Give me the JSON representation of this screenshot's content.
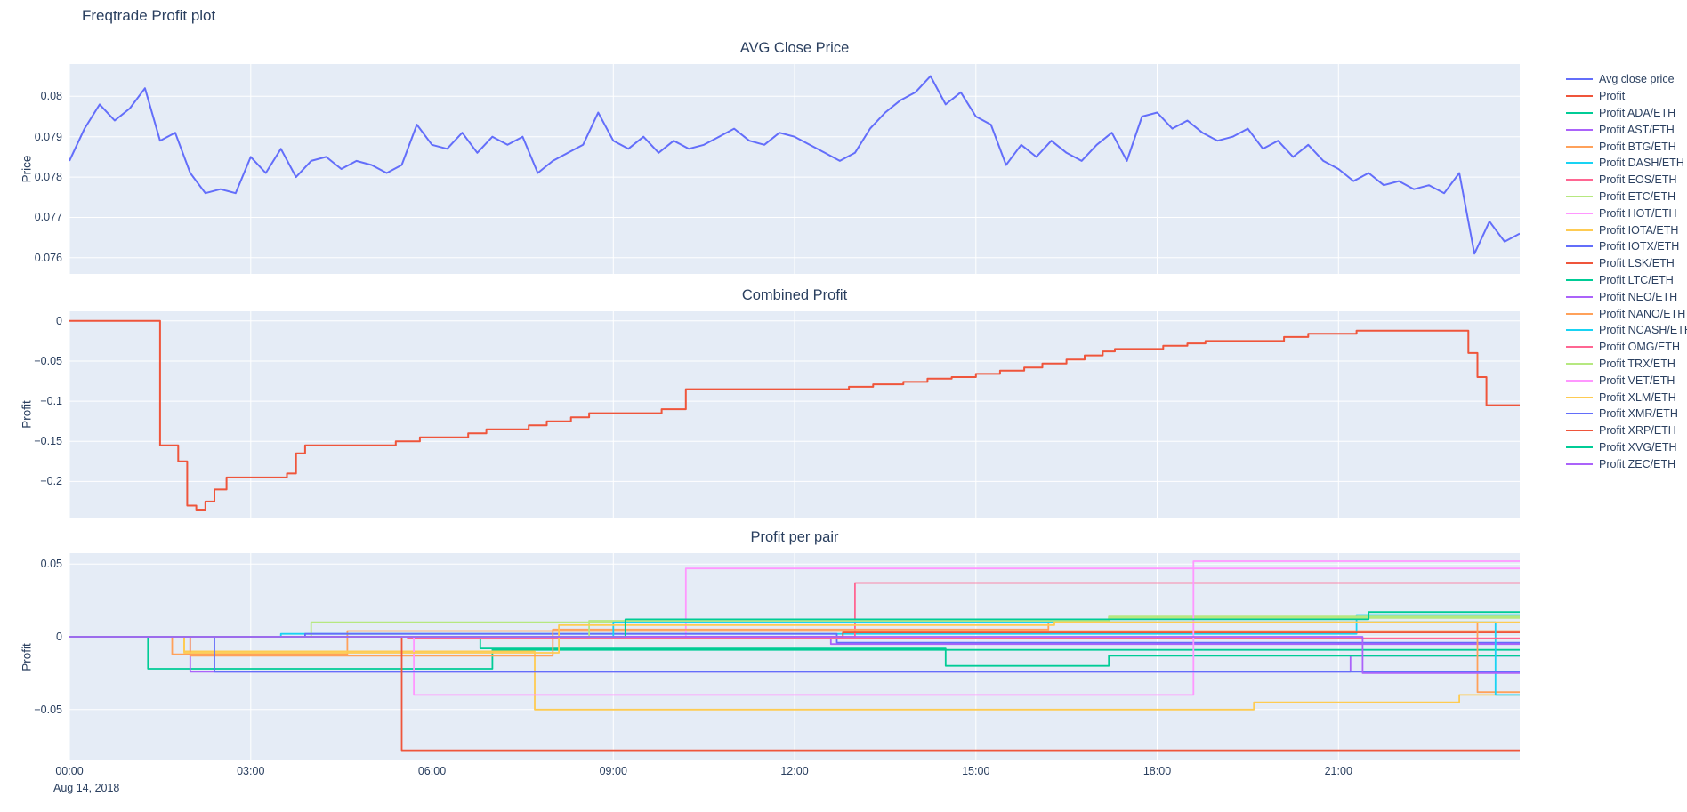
{
  "page": {
    "title": "Freqtrade Profit plot"
  },
  "colors": {
    "text": "#2a3f5f",
    "plot_bg": "#E5ECF6",
    "grid": "#ffffff"
  },
  "xaxis": {
    "range": [
      0,
      24
    ],
    "ticks": [
      {
        "t": 0,
        "label": "00:00"
      },
      {
        "t": 3,
        "label": "03:00"
      },
      {
        "t": 6,
        "label": "06:00"
      },
      {
        "t": 9,
        "label": "09:00"
      },
      {
        "t": 12,
        "label": "12:00"
      },
      {
        "t": 15,
        "label": "15:00"
      },
      {
        "t": 18,
        "label": "18:00"
      },
      {
        "t": 21,
        "label": "21:00"
      }
    ],
    "date_label": "Aug 14, 2018"
  },
  "legend": {
    "items": [
      {
        "label": "Avg close price",
        "color": "#636EFA"
      },
      {
        "label": "Profit",
        "color": "#EF553B"
      },
      {
        "label": "Profit ADA/ETH",
        "color": "#00CC96"
      },
      {
        "label": "Profit AST/ETH",
        "color": "#AB63FA"
      },
      {
        "label": "Profit BTG/ETH",
        "color": "#FFA15A"
      },
      {
        "label": "Profit DASH/ETH",
        "color": "#19D3F3"
      },
      {
        "label": "Profit EOS/ETH",
        "color": "#FF6692"
      },
      {
        "label": "Profit ETC/ETH",
        "color": "#B6E880"
      },
      {
        "label": "Profit HOT/ETH",
        "color": "#FF97FF"
      },
      {
        "label": "Profit IOTA/ETH",
        "color": "#FECB52"
      },
      {
        "label": "Profit IOTX/ETH",
        "color": "#636EFA"
      },
      {
        "label": "Profit LSK/ETH",
        "color": "#EF553B"
      },
      {
        "label": "Profit LTC/ETH",
        "color": "#00CC96"
      },
      {
        "label": "Profit NEO/ETH",
        "color": "#AB63FA"
      },
      {
        "label": "Profit NANO/ETH",
        "color": "#FFA15A"
      },
      {
        "label": "Profit NCASH/ETH",
        "color": "#19D3F3"
      },
      {
        "label": "Profit OMG/ETH",
        "color": "#FF6692"
      },
      {
        "label": "Profit TRX/ETH",
        "color": "#B6E880"
      },
      {
        "label": "Profit VET/ETH",
        "color": "#FF97FF"
      },
      {
        "label": "Profit XLM/ETH",
        "color": "#FECB52"
      },
      {
        "label": "Profit XMR/ETH",
        "color": "#636EFA"
      },
      {
        "label": "Profit XRP/ETH",
        "color": "#EF553B"
      },
      {
        "label": "Profit XVG/ETH",
        "color": "#00CC96"
      },
      {
        "label": "Profit ZEC/ETH",
        "color": "#AB63FA"
      }
    ]
  },
  "chart_data": [
    {
      "type": "line",
      "title": "AVG Close Price",
      "ylabel": "Price",
      "ylim": [
        0.0756,
        0.0808
      ],
      "yticks": [
        {
          "v": 0.076,
          "label": "0.076"
        },
        {
          "v": 0.077,
          "label": "0.077"
        },
        {
          "v": 0.078,
          "label": "0.078"
        },
        {
          "v": 0.079,
          "label": "0.079"
        },
        {
          "v": 0.08,
          "label": "0.08"
        }
      ],
      "series": [
        {
          "name": "Avg close price",
          "color": "#636EFA",
          "x_start": 0,
          "x_step": 0.25,
          "y": [
            0.0784,
            0.0792,
            0.0798,
            0.0794,
            0.0797,
            0.0802,
            0.0789,
            0.0791,
            0.0781,
            0.0776,
            0.0777,
            0.0776,
            0.0785,
            0.0781,
            0.0787,
            0.078,
            0.0784,
            0.0785,
            0.0782,
            0.0784,
            0.0783,
            0.0781,
            0.0783,
            0.0793,
            0.0788,
            0.0787,
            0.0791,
            0.0786,
            0.079,
            0.0788,
            0.079,
            0.0781,
            0.0784,
            0.0786,
            0.0788,
            0.0796,
            0.0789,
            0.0787,
            0.079,
            0.0786,
            0.0789,
            0.0787,
            0.0788,
            0.079,
            0.0792,
            0.0789,
            0.0788,
            0.0791,
            0.079,
            0.0788,
            0.0786,
            0.0784,
            0.0786,
            0.0792,
            0.0796,
            0.0799,
            0.0801,
            0.0805,
            0.0798,
            0.0801,
            0.0795,
            0.0793,
            0.0783,
            0.0788,
            0.0785,
            0.0789,
            0.0786,
            0.0784,
            0.0788,
            0.0791,
            0.0784,
            0.0795,
            0.0796,
            0.0792,
            0.0794,
            0.0791,
            0.0789,
            0.079,
            0.0792,
            0.0787,
            0.0789,
            0.0785,
            0.0788,
            0.0784,
            0.0782,
            0.0779,
            0.0781,
            0.0778,
            0.0779,
            0.0777,
            0.0778,
            0.0776,
            0.0781,
            0.0761,
            0.0769,
            0.0764,
            0.0766
          ]
        }
      ]
    },
    {
      "type": "step",
      "title": "Combined Profit",
      "ylabel": "Profit",
      "ylim": [
        -0.245,
        0.012
      ],
      "yticks": [
        {
          "v": 0,
          "label": "0"
        },
        {
          "v": -0.05,
          "label": "−0.05"
        },
        {
          "v": -0.1,
          "label": "−0.1"
        },
        {
          "v": -0.15,
          "label": "−0.15"
        },
        {
          "v": -0.2,
          "label": "−0.2"
        }
      ],
      "series": [
        {
          "name": "Profit",
          "color": "#EF553B",
          "step": true,
          "points": [
            [
              0,
              0
            ],
            [
              1.5,
              -0.155
            ],
            [
              1.8,
              -0.175
            ],
            [
              1.95,
              -0.23
            ],
            [
              2.1,
              -0.235
            ],
            [
              2.25,
              -0.225
            ],
            [
              2.4,
              -0.21
            ],
            [
              2.6,
              -0.195
            ],
            [
              3.6,
              -0.19
            ],
            [
              3.75,
              -0.165
            ],
            [
              3.9,
              -0.155
            ],
            [
              5.4,
              -0.15
            ],
            [
              5.8,
              -0.145
            ],
            [
              6.6,
              -0.14
            ],
            [
              6.9,
              -0.135
            ],
            [
              7.6,
              -0.13
            ],
            [
              7.9,
              -0.125
            ],
            [
              8.3,
              -0.12
            ],
            [
              8.6,
              -0.115
            ],
            [
              9.8,
              -0.11
            ],
            [
              10.2,
              -0.085
            ],
            [
              12.9,
              -0.082
            ],
            [
              13.3,
              -0.079
            ],
            [
              13.8,
              -0.076
            ],
            [
              14.2,
              -0.072
            ],
            [
              14.6,
              -0.07
            ],
            [
              15.0,
              -0.066
            ],
            [
              15.4,
              -0.062
            ],
            [
              15.8,
              -0.058
            ],
            [
              16.1,
              -0.053
            ],
            [
              16.5,
              -0.048
            ],
            [
              16.8,
              -0.043
            ],
            [
              17.1,
              -0.038
            ],
            [
              17.3,
              -0.035
            ],
            [
              18.1,
              -0.031
            ],
            [
              18.5,
              -0.028
            ],
            [
              18.8,
              -0.025
            ],
            [
              20.1,
              -0.02
            ],
            [
              20.5,
              -0.016
            ],
            [
              21.3,
              -0.012
            ],
            [
              23.15,
              -0.04
            ],
            [
              23.3,
              -0.07
            ],
            [
              23.45,
              -0.105
            ]
          ]
        }
      ]
    },
    {
      "type": "step",
      "title": "Profit per pair",
      "ylabel": "Profit",
      "ylim": [
        -0.085,
        0.0575
      ],
      "yticks": [
        {
          "v": 0.05,
          "label": "0.05"
        },
        {
          "v": 0,
          "label": "0"
        },
        {
          "v": -0.05,
          "label": "−0.05"
        }
      ],
      "series": [
        {
          "name": "Profit ADA/ETH",
          "color": "#00CC96",
          "step": true,
          "points": [
            [
              0,
              0
            ],
            [
              1.3,
              -0.022
            ],
            [
              7.0,
              -0.009
            ]
          ]
        },
        {
          "name": "Profit AST/ETH",
          "color": "#AB63FA",
          "step": true,
          "points": [
            [
              0,
              0
            ],
            [
              2.0,
              -0.024
            ],
            [
              21.2,
              -0.013
            ]
          ]
        },
        {
          "name": "Profit BTG/ETH",
          "color": "#FFA15A",
          "step": true,
          "points": [
            [
              0,
              0
            ],
            [
              1.7,
              -0.012
            ],
            [
              4.6,
              0.004
            ]
          ]
        },
        {
          "name": "Profit DASH/ETH",
          "color": "#19D3F3",
          "step": true,
          "points": [
            [
              0,
              0
            ],
            [
              3.5,
              0.002
            ],
            [
              21.3,
              0.015
            ]
          ]
        },
        {
          "name": "Profit EOS/ETH",
          "color": "#FF6692",
          "step": true,
          "points": [
            [
              0,
              0
            ],
            [
              13.0,
              0.037
            ]
          ]
        },
        {
          "name": "Profit ETC/ETH",
          "color": "#B6E880",
          "step": true,
          "points": [
            [
              0,
              0
            ],
            [
              4.0,
              0.01
            ],
            [
              17.2,
              0.013
            ]
          ]
        },
        {
          "name": "Profit HOT/ETH",
          "color": "#FF97FF",
          "step": true,
          "points": [
            [
              0,
              0
            ],
            [
              10.2,
              0.047
            ]
          ]
        },
        {
          "name": "Profit IOTA/ETH",
          "color": "#FECB52",
          "step": true,
          "points": [
            [
              0,
              0
            ],
            [
              1.9,
              -0.01
            ],
            [
              7.7,
              -0.05
            ],
            [
              19.6,
              -0.045
            ],
            [
              23.0,
              -0.04
            ]
          ]
        },
        {
          "name": "Profit IOTX/ETH",
          "color": "#636EFA",
          "step": true,
          "points": [
            [
              0,
              0
            ],
            [
              3.9,
              0.002
            ],
            [
              12.7,
              -0.004
            ]
          ]
        },
        {
          "name": "Profit LSK/ETH",
          "color": "#EF553B",
          "step": true,
          "points": [
            [
              0,
              0
            ],
            [
              12.8,
              0.003
            ]
          ]
        },
        {
          "name": "Profit LTC/ETH",
          "color": "#00CC96",
          "step": true,
          "points": [
            [
              0,
              0
            ],
            [
              6.8,
              -0.008
            ],
            [
              14.5,
              -0.02
            ],
            [
              17.2,
              -0.013
            ]
          ]
        },
        {
          "name": "Profit NEO/ETH",
          "color": "#AB63FA",
          "step": true,
          "points": [
            [
              0,
              0
            ],
            [
              12.6,
              -0.005
            ]
          ]
        },
        {
          "name": "Profit NANO/ETH",
          "color": "#FFA15A",
          "step": true,
          "points": [
            [
              0,
              0
            ],
            [
              2.0,
              -0.013
            ],
            [
              8.0,
              0.005
            ],
            [
              16.2,
              0.01
            ],
            [
              23.3,
              -0.038
            ]
          ]
        },
        {
          "name": "Profit NCASH/ETH",
          "color": "#19D3F3",
          "step": true,
          "points": [
            [
              0,
              0
            ],
            [
              9.0,
              0.01
            ],
            [
              23.6,
              -0.04
            ]
          ]
        },
        {
          "name": "Profit OMG/ETH",
          "color": "#FF6692",
          "step": true,
          "points": [
            [
              0,
              0
            ],
            [
              5.6,
              -0.001
            ]
          ]
        },
        {
          "name": "Profit TRX/ETH",
          "color": "#B6E880",
          "step": true,
          "points": [
            [
              0,
              0
            ],
            [
              8.6,
              0.011
            ],
            [
              17.2,
              0.014
            ]
          ]
        },
        {
          "name": "Profit VET/ETH",
          "color": "#FF97FF",
          "step": true,
          "points": [
            [
              0,
              0
            ],
            [
              5.7,
              -0.04
            ],
            [
              18.6,
              0.052
            ]
          ]
        },
        {
          "name": "Profit XLM/ETH",
          "color": "#FECB52",
          "step": true,
          "points": [
            [
              0,
              0
            ],
            [
              1.9,
              -0.011
            ],
            [
              8.1,
              0.008
            ],
            [
              16.3,
              0.01
            ]
          ]
        },
        {
          "name": "Profit XMR/ETH",
          "color": "#636EFA",
          "step": true,
          "points": [
            [
              0,
              0
            ],
            [
              2.4,
              -0.024
            ]
          ]
        },
        {
          "name": "Profit XRP/ETH",
          "color": "#EF553B",
          "step": true,
          "points": [
            [
              0,
              0
            ],
            [
              5.5,
              -0.078
            ]
          ]
        },
        {
          "name": "Profit XVG/ETH",
          "color": "#00CC96",
          "step": true,
          "points": [
            [
              0,
              0
            ],
            [
              9.2,
              0.012
            ],
            [
              21.5,
              0.017
            ]
          ]
        },
        {
          "name": "Profit ZEC/ETH",
          "color": "#AB63FA",
          "step": true,
          "points": [
            [
              0,
              0
            ],
            [
              21.4,
              -0.025
            ]
          ]
        }
      ]
    }
  ]
}
